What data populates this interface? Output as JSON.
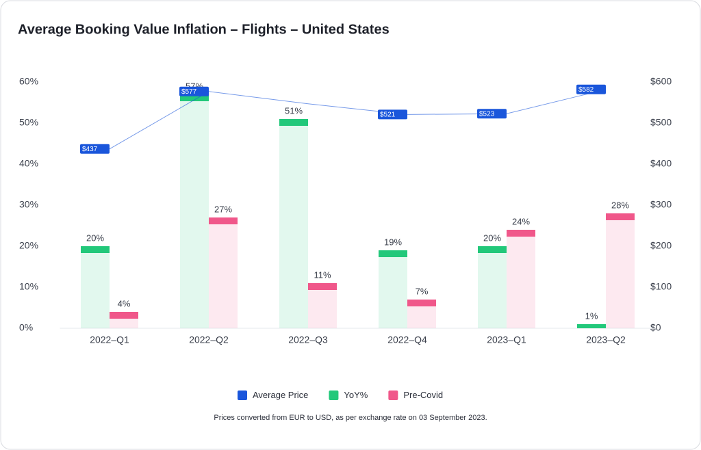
{
  "chart_data": {
    "type": "bar",
    "title": "Average Booking Value Inflation – Flights – United States",
    "note": "Prices converted from EUR to USD, as per exchange rate on 03 September 2023.",
    "categories": [
      "2022–Q1",
      "2022–Q2",
      "2022–Q3",
      "2022–Q4",
      "2023–Q1",
      "2023–Q2"
    ],
    "ylim": [
      0,
      60
    ],
    "yticks": [
      {
        "value": 0,
        "label": "0%"
      },
      {
        "value": 10,
        "label": "10%"
      },
      {
        "value": 20,
        "label": "20%"
      },
      {
        "value": 30,
        "label": "30%"
      },
      {
        "value": 40,
        "label": "40%"
      },
      {
        "value": 50,
        "label": "50%"
      },
      {
        "value": 60,
        "label": "60%"
      }
    ],
    "y2lim": [
      0,
      600
    ],
    "y2ticks": [
      {
        "value": 0,
        "label": "$0"
      },
      {
        "value": 100,
        "label": "$100"
      },
      {
        "value": 200,
        "label": "$200"
      },
      {
        "value": 300,
        "label": "$300"
      },
      {
        "value": 400,
        "label": "$400"
      },
      {
        "value": 500,
        "label": "$500"
      },
      {
        "value": 600,
        "label": "$600"
      }
    ],
    "series": [
      {
        "name": "Average Price",
        "type": "line",
        "axis": "y2",
        "color": "#1a56db",
        "values": [
          437,
          577,
          547,
          521,
          523,
          582
        ],
        "value_labels": [
          "$437",
          "$577",
          null,
          "$521",
          "$523",
          "$582"
        ]
      },
      {
        "name": "YoY%",
        "type": "bar",
        "color": "#22c87a",
        "values": [
          20,
          57,
          51,
          19,
          20,
          1
        ],
        "value_labels": [
          "20%",
          "57%",
          "51%",
          "19%",
          "20%",
          "1%"
        ]
      },
      {
        "name": "Pre-Covid",
        "type": "bar",
        "color": "#f0578a",
        "values": [
          4,
          27,
          11,
          7,
          24,
          28
        ],
        "value_labels": [
          "4%",
          "27%",
          "11%",
          "7%",
          "24%",
          "28%"
        ]
      }
    ]
  }
}
